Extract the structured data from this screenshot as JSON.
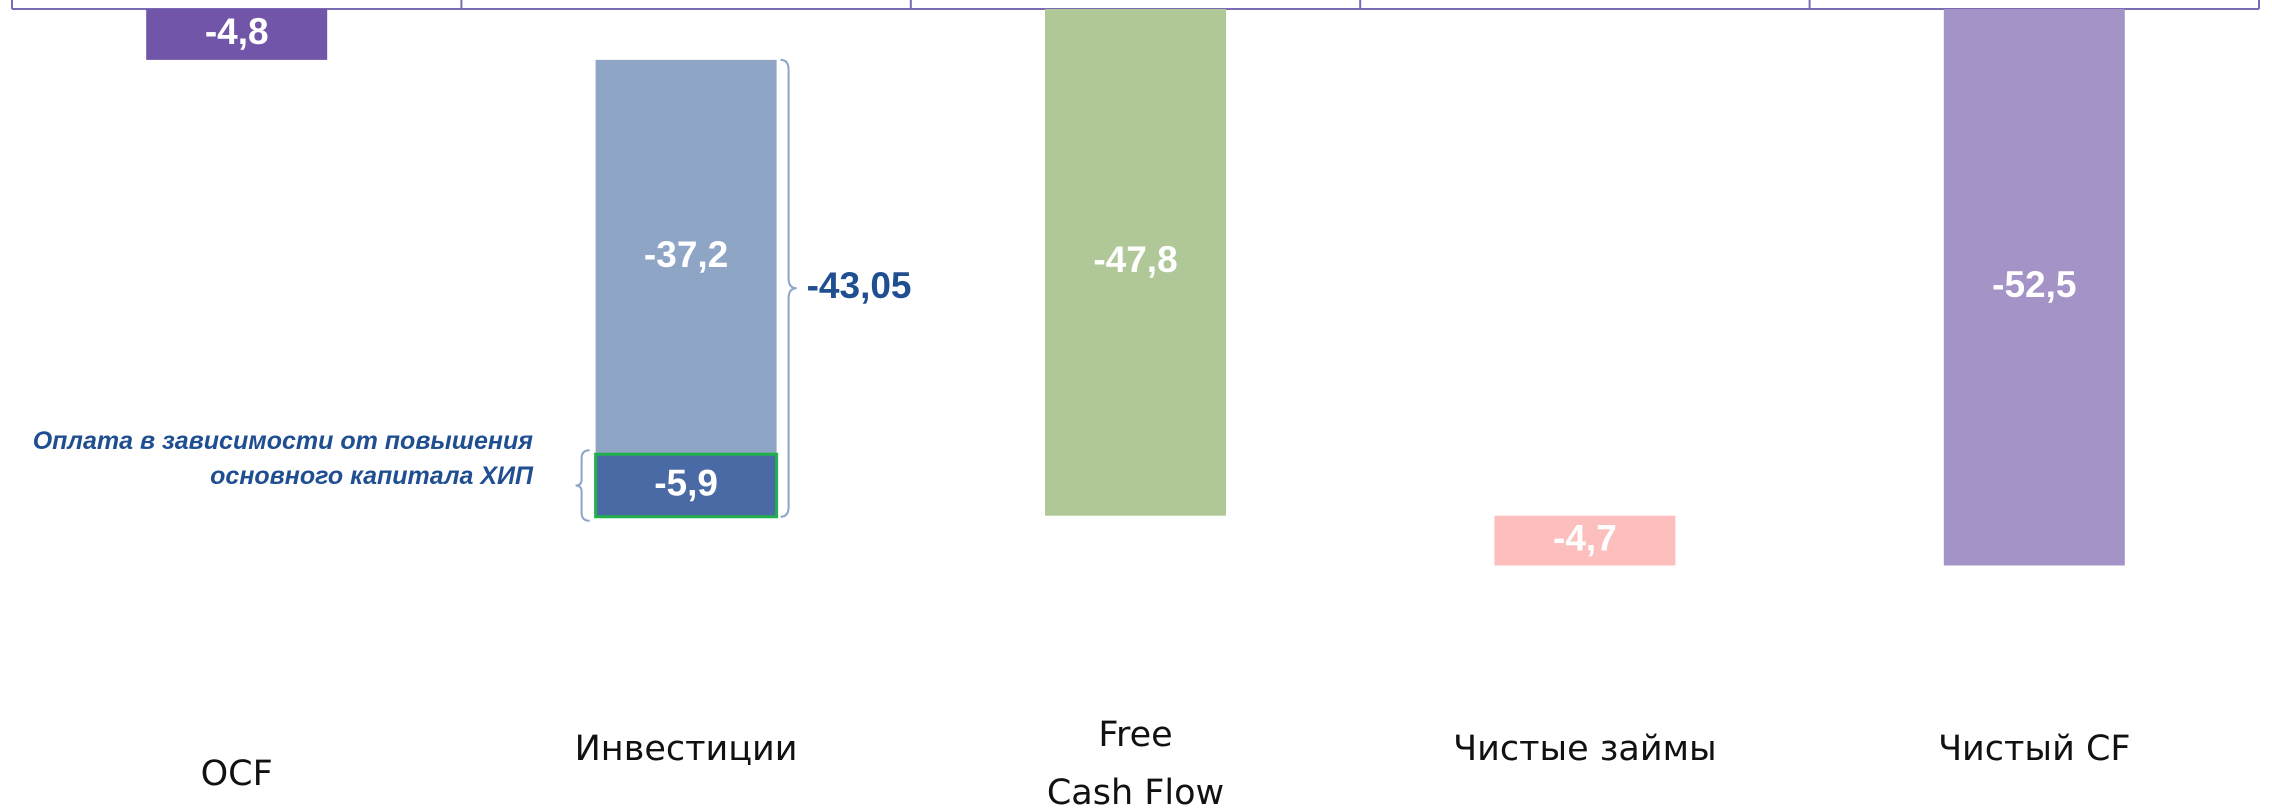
{
  "chart_data": {
    "type": "waterfall",
    "categories": [
      "OCF",
      "Инвестиции",
      "Free\nCash Flow",
      "Чистые займы",
      "Чистый CF"
    ],
    "measure": [
      "relative",
      "relative",
      "total",
      "relative",
      "total"
    ],
    "bars": [
      {
        "values": [
          -4.8
        ],
        "value_labels": [
          "-4,8"
        ],
        "colors": [
          "#7155a8"
        ]
      },
      {
        "values": [
          -37.2,
          -5.9
        ],
        "value_labels": [
          "-37,2",
          "-5,9"
        ],
        "colors": [
          "#8ea5c5",
          "#4a6aa5"
        ]
      },
      {
        "values": [
          -47.8
        ],
        "value_labels": [
          "-47,8"
        ],
        "colors": [
          "#b0c797"
        ]
      },
      {
        "values": [
          -4.7
        ],
        "value_labels": [
          "-4,7"
        ],
        "colors": [
          "#fdbfbd"
        ]
      },
      {
        "values": [
          -52.5
        ],
        "value_labels": [
          "-52,5"
        ],
        "colors": [
          "#a493c6"
        ]
      }
    ],
    "ylim": [
      -75,
      0
    ],
    "bracket": {
      "value": -43.05,
      "label": "-43,05"
    },
    "note": "Оплата в зависимости от повышения основного капитала  ХИП"
  }
}
